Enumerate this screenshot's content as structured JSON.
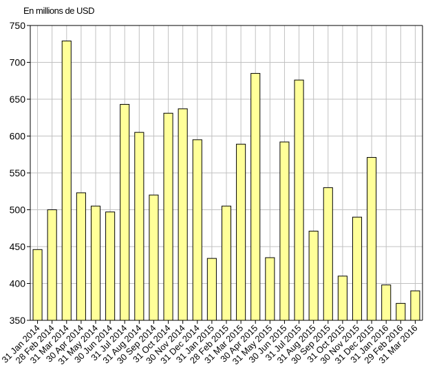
{
  "chart_data": {
    "type": "bar",
    "ylabel": "En millions de USD",
    "ylim": [
      350,
      750
    ],
    "yticks": [
      350,
      400,
      450,
      500,
      550,
      600,
      650,
      700,
      750
    ],
    "grid": true,
    "bar_color": "#FFFF99",
    "bar_edge_color": "#000000",
    "grid_color": "#C0C0C0",
    "categories": [
      "31 Jan 2014",
      "28 Feb 2014",
      "31 Mar 2014",
      "30 Apr 2014",
      "31 May 2014",
      "30 Jun 2014",
      "31 Jul 2014",
      "31 Aug 2014",
      "30 Sep 2014",
      "31 Oct 2014",
      "30 Nov 2014",
      "31 Dec 2014",
      "31 Jan 2015",
      "28 Feb 2015",
      "31 Mar 2015",
      "30 Apr 2015",
      "31 May 2015",
      "30 Jun 2015",
      "31 Jul 2015",
      "31 Aug 2015",
      "30 Sep 2015",
      "31 Oct 2015",
      "30 Nov 2015",
      "31 Dec 2015",
      "31 Jan 2016",
      "29 Feb 2016",
      "31 Mar 2016"
    ],
    "values": [
      446,
      500,
      729,
      523,
      505,
      497,
      643,
      605,
      520,
      631,
      637,
      595,
      434,
      505,
      589,
      685,
      435,
      592,
      676,
      471,
      530,
      410,
      490,
      571,
      398,
      373,
      390
    ]
  }
}
